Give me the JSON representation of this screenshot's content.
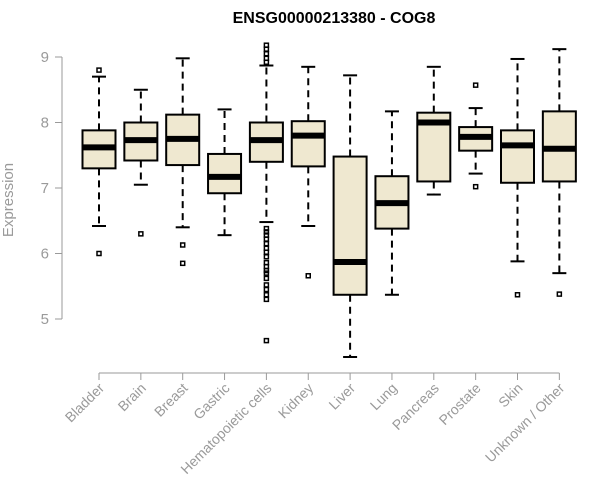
{
  "chart_data": {
    "type": "box",
    "title": "ENSG00000213380 - COG8",
    "xlabel": "",
    "ylabel": "Expression",
    "ylim": [
      4.4,
      9.2
    ],
    "yticks": [
      5,
      6,
      7,
      8,
      9
    ],
    "box_fill": "#efe8d0",
    "box_stroke": "#000000",
    "grid": false,
    "categories": [
      "Bladder",
      "Brain",
      "Breast",
      "Gastric",
      "Hematopoietic cells",
      "Kidney",
      "Liver",
      "Lung",
      "Pancreas",
      "Prostate",
      "Skin",
      "Unknown / Other"
    ],
    "boxes": [
      {
        "category": "Bladder",
        "whisker_low": 6.42,
        "q1": 7.3,
        "median": 7.62,
        "q3": 7.88,
        "whisker_high": 8.7,
        "outliers": [
          6.0,
          8.8
        ]
      },
      {
        "category": "Brain",
        "whisker_low": 7.05,
        "q1": 7.42,
        "median": 7.73,
        "q3": 8.0,
        "whisker_high": 8.5,
        "outliers": [
          6.3
        ]
      },
      {
        "category": "Breast",
        "whisker_low": 6.4,
        "q1": 7.35,
        "median": 7.75,
        "q3": 8.12,
        "whisker_high": 8.98,
        "outliers": [
          6.13,
          5.85
        ]
      },
      {
        "category": "Gastric",
        "whisker_low": 6.28,
        "q1": 6.92,
        "median": 7.17,
        "q3": 7.52,
        "whisker_high": 8.2,
        "outliers": []
      },
      {
        "category": "Hematopoietic cells",
        "whisker_low": 6.48,
        "q1": 7.4,
        "median": 7.73,
        "q3": 8.0,
        "whisker_high": 8.87,
        "outliers": [
          9.18,
          9.12,
          9.05,
          8.98,
          8.92,
          6.38,
          6.33,
          6.28,
          6.22,
          6.15,
          6.08,
          6.02,
          5.95,
          5.86,
          5.8,
          5.74,
          5.7,
          5.62,
          5.52,
          5.45,
          5.37,
          5.3,
          4.67
        ]
      },
      {
        "category": "Kidney",
        "whisker_low": 6.42,
        "q1": 7.33,
        "median": 7.8,
        "q3": 8.02,
        "whisker_high": 8.85,
        "outliers": [
          5.66
        ]
      },
      {
        "category": "Liver",
        "whisker_low": 4.42,
        "q1": 5.37,
        "median": 5.87,
        "q3": 7.48,
        "whisker_high": 8.72,
        "outliers": []
      },
      {
        "category": "Lung",
        "whisker_low": 5.37,
        "q1": 6.38,
        "median": 6.77,
        "q3": 7.18,
        "whisker_high": 8.17,
        "outliers": []
      },
      {
        "category": "Pancreas",
        "whisker_low": 6.9,
        "q1": 7.1,
        "median": 8.0,
        "q3": 8.15,
        "whisker_high": 8.85,
        "outliers": []
      },
      {
        "category": "Prostate",
        "whisker_low": 7.22,
        "q1": 7.57,
        "median": 7.78,
        "q3": 7.93,
        "whisker_high": 8.22,
        "outliers": [
          8.57,
          7.02
        ]
      },
      {
        "category": "Skin",
        "whisker_low": 5.88,
        "q1": 7.08,
        "median": 7.65,
        "q3": 7.88,
        "whisker_high": 8.97,
        "outliers": [
          5.37
        ]
      },
      {
        "category": "Unknown / Other",
        "whisker_low": 5.7,
        "q1": 7.1,
        "median": 7.6,
        "q3": 8.17,
        "whisker_high": 9.12,
        "outliers": [
          5.38
        ]
      }
    ]
  }
}
